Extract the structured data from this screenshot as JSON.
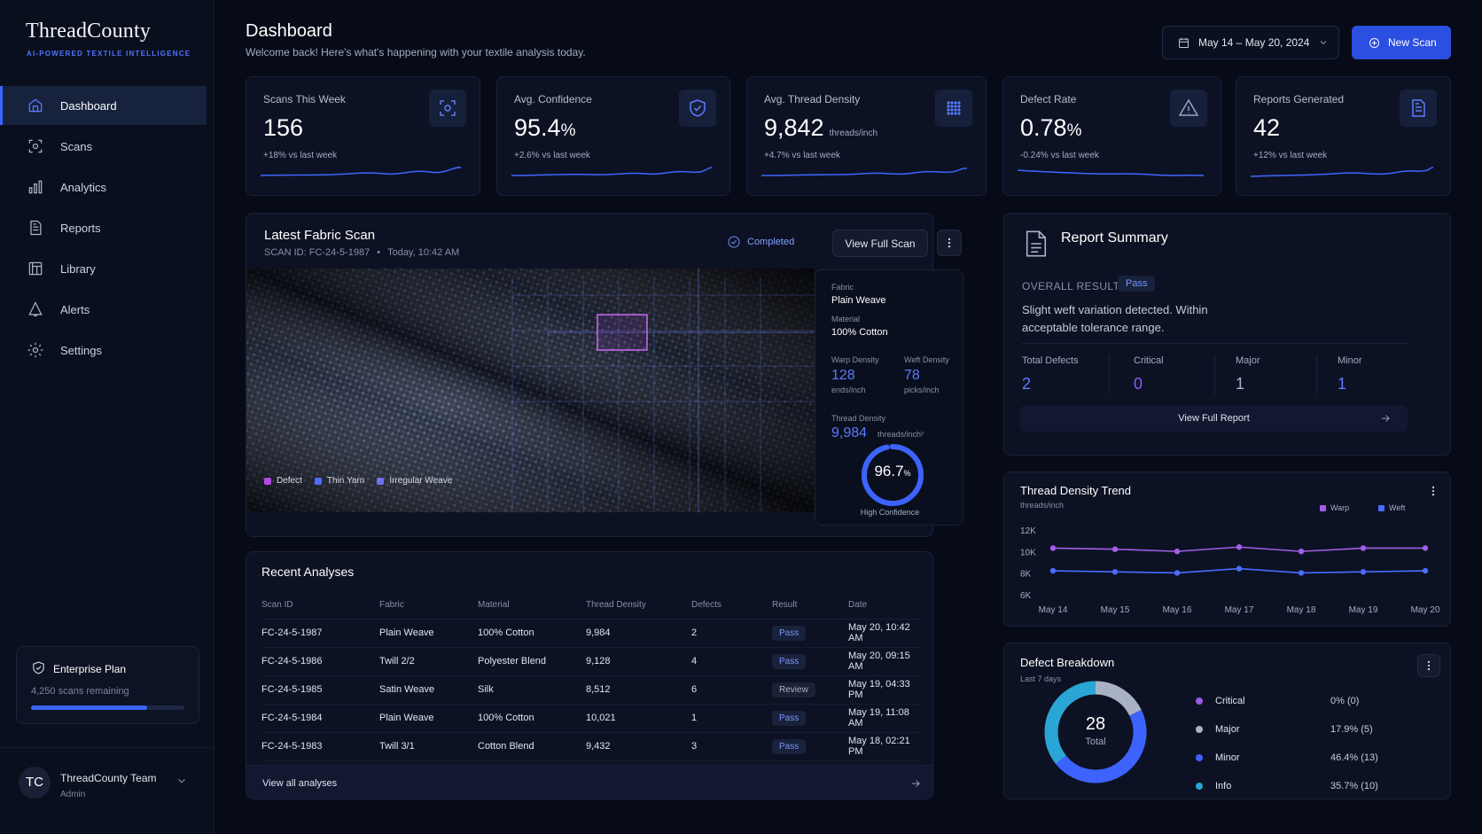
{
  "app": {
    "logo": "ThreadCounty",
    "tagline": "AI-POWERED TEXTILE INTELLIGENCE"
  },
  "nav": [
    {
      "label": "Dashboard",
      "icon": "home-icon",
      "active": true
    },
    {
      "label": "Scans",
      "icon": "scan-icon"
    },
    {
      "label": "Analytics",
      "icon": "bar-chart-icon"
    },
    {
      "label": "Reports",
      "icon": "document-icon"
    },
    {
      "label": "Library",
      "icon": "library-icon"
    },
    {
      "label": "Alerts",
      "icon": "bell-icon"
    },
    {
      "label": "Settings",
      "icon": "gear-icon"
    }
  ],
  "plan": {
    "title": "Enterprise Plan",
    "remaining": "4,250 scans remaining",
    "usage": 0.76
  },
  "user": {
    "initials": "TC",
    "name": "ThreadCounty Team",
    "role": "Admin"
  },
  "header": {
    "title": "Dashboard",
    "subtitle": "Welcome back! Here's what's happening with your textile analysis today.",
    "date_range": "May 14 – May 20, 2024",
    "new_scan": "New Scan"
  },
  "stats": [
    {
      "label": "Scans This Week",
      "value": "156",
      "suffix": "",
      "unit": "",
      "change": "+18% vs last week",
      "icon": "scan-icon"
    },
    {
      "label": "Avg. Confidence",
      "value": "95.4",
      "suffix": "%",
      "unit": "",
      "change": "+2.6% vs last week",
      "icon": "shield-check-icon"
    },
    {
      "label": "Avg. Thread Density",
      "value": "9,842",
      "suffix": "",
      "unit": "threads/inch",
      "change": "+4.7% vs last week",
      "icon": "grid-icon"
    },
    {
      "label": "Defect Rate",
      "value": "0.78",
      "suffix": "%",
      "unit": "",
      "change": "-0.24% vs last week",
      "icon": "warning-icon"
    },
    {
      "label": "Reports Generated",
      "value": "42",
      "suffix": "",
      "unit": "",
      "change": "+12% vs last week",
      "icon": "report-icon"
    }
  ],
  "scan": {
    "title": "Latest Fabric Scan",
    "scan_id": "SCAN ID: FC-24-5-1987",
    "time": "Today, 10:42 AM",
    "status": "Completed",
    "view_full": "View Full Scan",
    "legend": [
      {
        "label": "Defect",
        "color": "#b14be0"
      },
      {
        "label": "Thin Yarn",
        "color": "#4a6cff"
      },
      {
        "label": "Irregular Weave",
        "color": "#6c6ff0"
      }
    ],
    "fabric_label": "Fabric",
    "fabric": "Plain Weave",
    "material_label": "Material",
    "material": "100% Cotton",
    "warp_label": "Warp Density",
    "warp": "128",
    "warp_unit": "ends/inch",
    "weft_label": "Weft Density",
    "weft": "78",
    "weft_unit": "picks/inch",
    "density_label": "Thread Density",
    "density": "9,984",
    "density_unit": "threads/inch²",
    "confidence": "96.7",
    "confidence_frac": 0.967,
    "confidence_label": "High Confidence"
  },
  "recent": {
    "title": "Recent Analyses",
    "columns": [
      "Scan ID",
      "Fabric",
      "Material",
      "Thread Density",
      "Defects",
      "Result",
      "Date"
    ],
    "rows": [
      [
        "FC-24-5-1987",
        "Plain Weave",
        "100% Cotton",
        "9,984",
        "2",
        "Pass",
        "May 20, 10:42 AM"
      ],
      [
        "FC-24-5-1986",
        "Twill 2/2",
        "Polyester Blend",
        "9,128",
        "4",
        "Pass",
        "May 20, 09:15 AM"
      ],
      [
        "FC-24-5-1985",
        "Satin Weave",
        "Silk",
        "8,512",
        "6",
        "Review",
        "May 19, 04:33 PM"
      ],
      [
        "FC-24-5-1984",
        "Plain Weave",
        "100% Cotton",
        "10,021",
        "1",
        "Pass",
        "May 19, 11:08 AM"
      ],
      [
        "FC-24-5-1983",
        "Twill 3/1",
        "Cotton Blend",
        "9,432",
        "3",
        "Pass",
        "May 18, 02:21 PM"
      ]
    ],
    "view_all": "View all analyses"
  },
  "report": {
    "title": "Report Summary",
    "overall_label": "OVERALL RESULT",
    "overall": "Pass",
    "text": "Slight weft variation detected. Within acceptable tolerance range.",
    "defects": [
      {
        "label": "Total Defects",
        "value": "2",
        "color": "#5b7bff"
      },
      {
        "label": "Critical",
        "value": "0",
        "color": "#8a5cf6"
      },
      {
        "label": "Major",
        "value": "1",
        "color": "#aab3c8"
      },
      {
        "label": "Minor",
        "value": "1",
        "color": "#5b7bff"
      }
    ],
    "view_full": "View Full Report"
  },
  "chart_data": [
    {
      "type": "line",
      "title": "Thread Density Trend",
      "ylabel": "threads/inch",
      "categories": [
        "May 14",
        "May 15",
        "May 16",
        "May 17",
        "May 18",
        "May 19",
        "May 20"
      ],
      "yticks": [
        "12K",
        "10K",
        "8K",
        "6K"
      ],
      "ylim": [
        6000,
        12000
      ],
      "series": [
        {
          "name": "Warp",
          "color": "#a35de8",
          "values": [
            10400,
            10300,
            10100,
            10500,
            10100,
            10400,
            10400
          ]
        },
        {
          "name": "Weft",
          "color": "#4a6cff",
          "values": [
            8300,
            8200,
            8100,
            8500,
            8100,
            8200,
            8300
          ]
        }
      ]
    },
    {
      "type": "pie",
      "title": "Defect Breakdown",
      "subtitle": "Last 7 days",
      "total": "28",
      "total_label": "Total",
      "slices": [
        {
          "name": "Critical",
          "value": 0,
          "pct": "0% (0)",
          "color": "#9b59e6"
        },
        {
          "name": "Major",
          "value": 5,
          "pct": "17.9% (5)",
          "color": "#a9b1c4"
        },
        {
          "name": "Minor",
          "value": 13,
          "pct": "46.4% (13)",
          "color": "#3d63ff"
        },
        {
          "name": "Info",
          "value": 10,
          "pct": "35.7% (10)",
          "color": "#2aa6d6"
        }
      ]
    }
  ]
}
